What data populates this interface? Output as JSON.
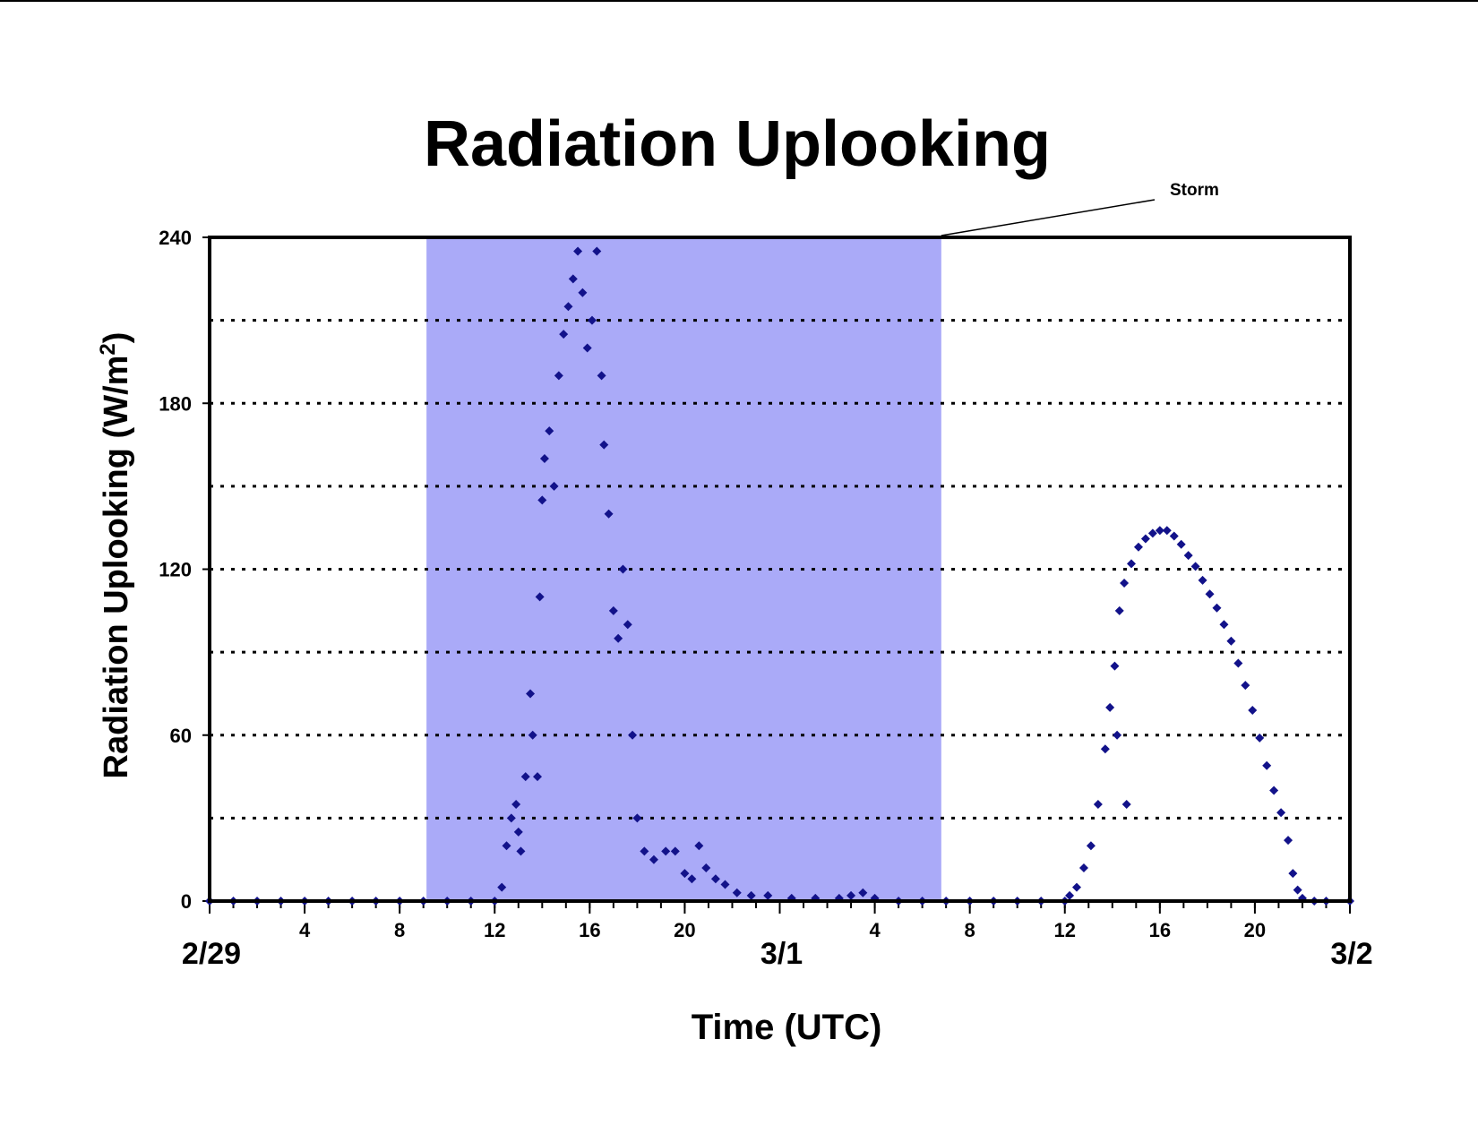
{
  "chart_data": {
    "type": "scatter",
    "title": "Radiation Uplooking",
    "ylabel": {
      "text": "Radiation Uplooking (W/m",
      "sup": "2",
      "end": ")"
    },
    "xlabel": "Time (UTC)",
    "annotation": {
      "text": "Storm",
      "x_start": 9.13,
      "x_end": 30.8,
      "color": "#aaaaf8"
    },
    "color": "#12128a",
    "xlim": [
      0,
      48
    ],
    "ylim": [
      0,
      240
    ],
    "yticks": [
      0,
      60,
      120,
      180,
      240
    ],
    "grid_y": [
      30,
      60,
      90,
      120,
      150,
      180,
      210
    ],
    "xticks": [
      4,
      8,
      12,
      16,
      20,
      {
        "value": 28,
        "label": "4"
      },
      {
        "value": 32,
        "label": "8"
      },
      {
        "value": 36,
        "label": "12"
      },
      {
        "value": 40,
        "label": "16"
      },
      {
        "value": 44,
        "label": "20"
      }
    ],
    "date_ticks": [
      {
        "value": 0,
        "label": "2/29"
      },
      {
        "value": 24,
        "label": "3/1"
      },
      {
        "value": 48,
        "label": "3/2"
      }
    ],
    "minor_xticks": [
      0,
      1,
      2,
      3,
      4,
      5,
      6,
      7,
      8,
      9,
      10,
      11,
      12,
      13,
      14,
      15,
      16,
      17,
      18,
      19,
      20,
      21,
      22,
      23,
      24,
      25,
      26,
      27,
      28,
      29,
      30,
      31,
      32,
      33,
      34,
      35,
      36,
      37,
      38,
      39,
      40,
      41,
      42,
      43,
      44,
      45,
      46,
      47,
      48
    ],
    "x": [
      0,
      1,
      2,
      3,
      4,
      5,
      6,
      7,
      8,
      9,
      10,
      11,
      12,
      12.3,
      12.5,
      12.7,
      12.9,
      13.0,
      13.1,
      13.3,
      13.5,
      13.6,
      13.8,
      13.9,
      14.0,
      14.1,
      14.3,
      14.5,
      14.7,
      14.9,
      15.1,
      15.3,
      15.5,
      15.7,
      15.9,
      16.1,
      16.3,
      16.5,
      16.6,
      16.8,
      17.0,
      17.2,
      17.4,
      17.6,
      17.8,
      18.0,
      18.3,
      18.7,
      19.2,
      19.6,
      20.0,
      20.3,
      20.6,
      20.9,
      21.3,
      21.7,
      22.2,
      22.8,
      23.5,
      24.5,
      25.5,
      26.5,
      27.0,
      27.5,
      28,
      29,
      30,
      31,
      32,
      33,
      34,
      35,
      36,
      36.2,
      36.5,
      36.8,
      37.1,
      37.4,
      37.7,
      37.9,
      38.1,
      38.2,
      38.3,
      38.5,
      38.6,
      38.8,
      39.1,
      39.4,
      39.7,
      40.0,
      40.3,
      40.6,
      40.9,
      41.2,
      41.5,
      41.8,
      42.1,
      42.4,
      42.7,
      43.0,
      43.3,
      43.6,
      43.9,
      44.2,
      44.5,
      44.8,
      45.1,
      45.4,
      45.6,
      45.8,
      46.0,
      46.5,
      47,
      48
    ],
    "values": [
      0,
      0,
      0,
      0,
      0,
      0,
      0,
      0,
      0,
      0,
      0,
      0,
      0,
      5,
      20,
      30,
      35,
      25,
      18,
      45,
      75,
      60,
      45,
      110,
      145,
      160,
      170,
      150,
      190,
      205,
      215,
      225,
      235,
      220,
      200,
      210,
      235,
      190,
      165,
      140,
      105,
      95,
      120,
      100,
      60,
      30,
      18,
      15,
      18,
      18,
      10,
      8,
      20,
      12,
      8,
      6,
      3,
      2,
      2,
      1,
      1,
      1,
      2,
      3,
      1,
      0,
      0,
      0,
      0,
      0,
      0,
      0,
      0,
      2,
      5,
      12,
      20,
      35,
      55,
      70,
      85,
      60,
      105,
      115,
      35,
      122,
      128,
      131,
      133,
      134,
      134,
      132,
      129,
      125,
      121,
      116,
      111,
      106,
      100,
      94,
      86,
      78,
      69,
      59,
      49,
      40,
      32,
      22,
      10,
      4,
      1,
      0,
      0,
      0
    ]
  }
}
